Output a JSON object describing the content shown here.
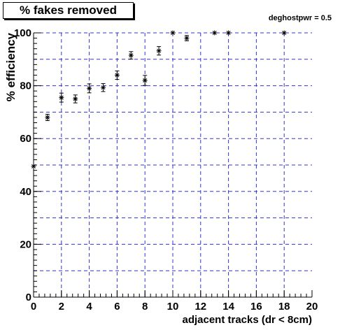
{
  "header": {
    "title": "% fakes removed",
    "note": "deghostpwr = 0.5"
  },
  "chart_data": {
    "type": "scatter",
    "title": "% fakes removed",
    "subtitle": "deghostpwr = 0.5",
    "xlabel": "adjacent tracks (dr < 8cm)",
    "ylabel": "% efficiency",
    "xlim": [
      0,
      20
    ],
    "ylim": [
      0,
      100
    ],
    "x_ticks": [
      0,
      2,
      4,
      6,
      8,
      10,
      12,
      14,
      16,
      18,
      20
    ],
    "y_ticks": [
      0,
      20,
      40,
      60,
      80,
      100
    ],
    "grid": true,
    "grid_color": "#3333cc",
    "series": [
      {
        "marker": "asterisk",
        "color": "#000000",
        "points": [
          {
            "x": 0,
            "y": 49.5,
            "err": 0.0
          },
          {
            "x": 1,
            "y": 68.0,
            "err": 1.2
          },
          {
            "x": 2,
            "y": 75.5,
            "err": 1.7
          },
          {
            "x": 3,
            "y": 75.0,
            "err": 1.5
          },
          {
            "x": 4,
            "y": 79.0,
            "err": 1.7
          },
          {
            "x": 5,
            "y": 79.3,
            "err": 1.5
          },
          {
            "x": 6,
            "y": 84.0,
            "err": 1.6
          },
          {
            "x": 7,
            "y": 91.5,
            "err": 1.4
          },
          {
            "x": 8,
            "y": 82.0,
            "err": 1.9
          },
          {
            "x": 9,
            "y": 93.2,
            "err": 1.6
          },
          {
            "x": 10,
            "y": 100.0,
            "err": 0.0
          },
          {
            "x": 11,
            "y": 98.0,
            "err": 1.0
          },
          {
            "x": 13,
            "y": 100.0,
            "err": 0.0
          },
          {
            "x": 14,
            "y": 100.0,
            "err": 0.0
          },
          {
            "x": 18,
            "y": 100.0,
            "err": 0.0
          }
        ]
      }
    ]
  }
}
